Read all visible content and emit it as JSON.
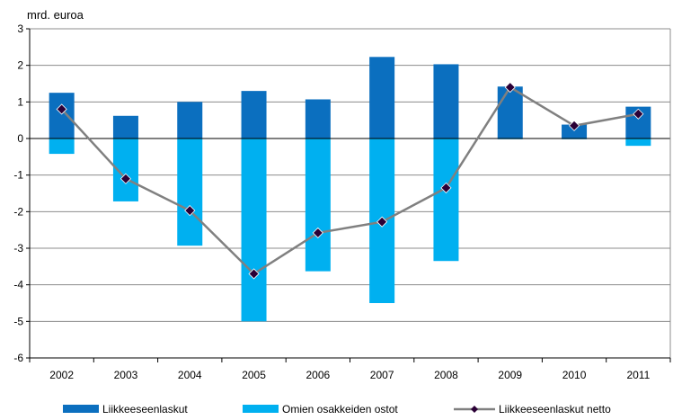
{
  "chart_data": {
    "type": "bar",
    "unit_label": "mrd. euroa",
    "categories": [
      "2002",
      "2003",
      "2004",
      "2005",
      "2006",
      "2007",
      "2008",
      "2009",
      "2010",
      "2011"
    ],
    "series": [
      {
        "name": "Liikkeeseenlaskut",
        "kind": "bar",
        "color": "#0b6fbf",
        "values": [
          1.25,
          0.62,
          1.0,
          1.3,
          1.07,
          2.23,
          2.03,
          1.42,
          0.38,
          0.87
        ]
      },
      {
        "name": "Omien osakkeiden ostot",
        "kind": "bar",
        "color": "#00b0f0",
        "values": [
          -0.42,
          -1.72,
          -2.93,
          -5.0,
          -3.63,
          -4.5,
          -3.35,
          -0.02,
          -0.02,
          -0.2
        ]
      },
      {
        "name": "Liikkeeseenlaskut netto",
        "kind": "line",
        "color": "#808080",
        "marker_color": "#2b0036",
        "values": [
          0.8,
          -1.1,
          -1.97,
          -3.7,
          -2.58,
          -2.28,
          -1.35,
          1.4,
          0.35,
          0.67
        ]
      }
    ],
    "ylim": [
      -6,
      3
    ],
    "yticks": [
      "-6",
      "-5",
      "-4",
      "-3",
      "-2",
      "-1",
      "0",
      "1",
      "2",
      "3"
    ],
    "grid": true,
    "legend_position": "bottom"
  }
}
